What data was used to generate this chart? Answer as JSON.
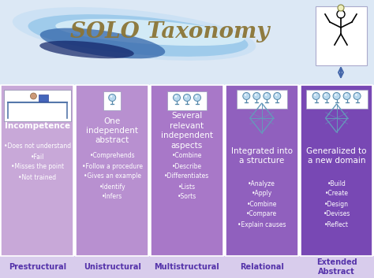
{
  "title": "SOLO Taxonomy",
  "title_color": "#8B7536",
  "title_fontsize": 20,
  "bg_top": "#e8eef8",
  "bg_bottom": "#d8d0e8",
  "columns": [
    {
      "label": "Prestructural",
      "header": "Incompetence",
      "header_bold": true,
      "bg_color": "#c8a8d8",
      "bullets": [
        "Does not understand",
        "Fail",
        "Misses the point",
        "Not trained"
      ],
      "num_bulbs": 0,
      "has_diamond": false
    },
    {
      "label": "Unistructural",
      "header": "One\nindependent\nabstract",
      "header_bold": false,
      "bg_color": "#b890d0",
      "bullets": [
        "Comprehends",
        "Follow a procedure",
        "Gives an example",
        "Identify",
        "Infers"
      ],
      "num_bulbs": 1,
      "has_diamond": false
    },
    {
      "label": "Multistructural",
      "header": "Several\nrelevant\nindependent\naspects",
      "header_bold": false,
      "bg_color": "#a878c8",
      "bullets": [
        "Combine",
        "Describe",
        "Differentiates",
        "Lists",
        "Sorts"
      ],
      "num_bulbs": 3,
      "has_diamond": false
    },
    {
      "label": "Relational",
      "header": "Integrated into\na structure",
      "header_bold": false,
      "bg_color": "#9060be",
      "bullets": [
        "Analyze",
        "Apply",
        "Combine",
        "Compare",
        "Explain causes"
      ],
      "num_bulbs": 4,
      "has_diamond": true
    },
    {
      "label": "Extended\nAbstract",
      "header": "Generalized to\na new domain",
      "header_bold": false,
      "bg_color": "#7848b4",
      "bullets": [
        "Build",
        "Create",
        "Design",
        "Devises",
        "Reflect"
      ],
      "num_bulbs": 5,
      "has_diamond": true
    }
  ],
  "label_color": "#5533aa",
  "label_fontsize": 7,
  "swirl_colors": [
    "#b8d8f0",
    "#7aaecc",
    "#3366aa"
  ],
  "header_fontsize": 7.5,
  "bullet_fontsize": 5.5
}
